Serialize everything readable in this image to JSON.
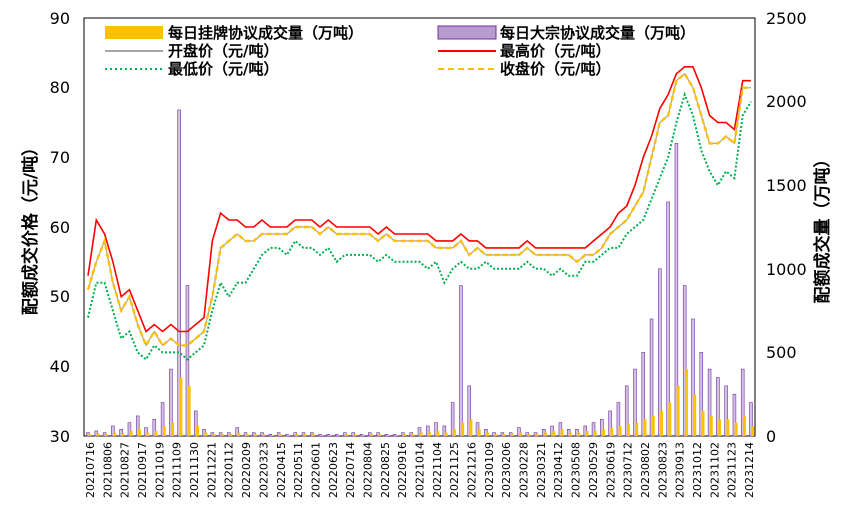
{
  "chart_data": {
    "type": "line",
    "xlabel": "",
    "ylabel": "配额成交价格（元/吨）",
    "y2label": "配额成交量（万吨）",
    "ylim": [
      30,
      90
    ],
    "y2lim": [
      0,
      2500
    ],
    "yticks": [
      "30",
      "40",
      "50",
      "60",
      "70",
      "80",
      "90"
    ],
    "y2ticks": [
      "0",
      "500",
      "1000",
      "1500",
      "2000",
      "2500"
    ],
    "x_ticks": [
      "20210716",
      "20210806",
      "20210827",
      "20210917",
      "20211019",
      "20211109",
      "20211130",
      "20211221",
      "20220112",
      "20220209",
      "20220323",
      "20220415",
      "20220511",
      "20220601",
      "20220623",
      "20220714",
      "20220804",
      "20220825",
      "20220916",
      "20221014",
      "20221104",
      "20221125",
      "20221216",
      "20230109",
      "20230206",
      "20230228",
      "20230321",
      "20230412",
      "20230508",
      "20230529",
      "20230619",
      "20230712",
      "20230802",
      "20230823",
      "20230913",
      "20231012",
      "20231102",
      "20231123",
      "20231214"
    ],
    "legend": [
      {
        "name": "每日挂牌协议成交量（万吨）",
        "color": "#FFC000",
        "style": "bar"
      },
      {
        "name": "每日大宗协议成交量（万吨）",
        "color": "#7030A0",
        "style": "hatched-bar"
      },
      {
        "name": "开盘价（元/吨）",
        "color": "#A6A6A6",
        "style": "solid"
      },
      {
        "name": "最高价（元/吨）",
        "color": "#FF0000",
        "style": "solid"
      },
      {
        "name": "最低价（元/吨）",
        "color": "#00B050",
        "style": "dotted"
      },
      {
        "name": "收盘价（元/吨）",
        "color": "#FFC000",
        "style": "dashed"
      }
    ],
    "close_price": [
      51,
      55,
      58,
      52,
      48,
      50,
      46,
      43,
      45,
      43,
      44,
      43,
      43,
      44,
      45,
      50,
      57,
      58,
      59,
      58,
      58,
      59,
      59,
      59,
      59,
      60,
      60,
      60,
      59,
      60,
      59,
      59,
      59,
      59,
      59,
      58,
      59,
      58,
      58,
      58,
      58,
      58,
      57,
      57,
      57,
      58,
      56,
      57,
      56,
      56,
      56,
      56,
      56,
      57,
      56,
      56,
      56,
      56,
      56,
      55,
      56,
      56,
      57,
      59,
      60,
      61,
      63,
      65,
      70,
      75,
      76,
      81,
      82,
      80,
      76,
      72,
      72,
      73,
      72,
      80,
      80
    ],
    "high_price": [
      53,
      61,
      59,
      55,
      50,
      51,
      48,
      45,
      46,
      45,
      46,
      45,
      45,
      46,
      47,
      58,
      62,
      61,
      61,
      60,
      60,
      61,
      60,
      60,
      60,
      61,
      61,
      61,
      60,
      61,
      60,
      60,
      60,
      60,
      60,
      59,
      60,
      59,
      59,
      59,
      59,
      59,
      58,
      58,
      58,
      59,
      58,
      58,
      57,
      57,
      57,
      57,
      57,
      58,
      57,
      57,
      57,
      57,
      57,
      57,
      57,
      58,
      59,
      60,
      62,
      63,
      66,
      70,
      73,
      77,
      79,
      82,
      83,
      83,
      80,
      76,
      75,
      75,
      74,
      81,
      81
    ],
    "low_price": [
      47,
      52,
      52,
      48,
      44,
      45,
      42,
      41,
      43,
      42,
      42,
      42,
      41,
      42,
      43,
      48,
      52,
      50,
      52,
      52,
      54,
      56,
      57,
      57,
      56,
      58,
      57,
      57,
      56,
      57,
      55,
      56,
      56,
      56,
      56,
      55,
      56,
      55,
      55,
      55,
      55,
      54,
      55,
      52,
      54,
      55,
      54,
      54,
      55,
      54,
      54,
      54,
      54,
      55,
      54,
      54,
      53,
      54,
      53,
      53,
      55,
      55,
      56,
      57,
      57,
      59,
      60,
      61,
      64,
      67,
      70,
      75,
      79,
      76,
      71,
      68,
      66,
      68,
      67,
      76,
      78
    ],
    "volume_listed": [
      10,
      15,
      10,
      20,
      15,
      30,
      40,
      20,
      30,
      60,
      80,
      350,
      300,
      60,
      20,
      10,
      10,
      10,
      20,
      10,
      10,
      10,
      5,
      10,
      5,
      10,
      10,
      10,
      5,
      5,
      5,
      10,
      10,
      5,
      10,
      10,
      5,
      5,
      10,
      10,
      20,
      20,
      30,
      20,
      40,
      80,
      100,
      40,
      20,
      10,
      10,
      10,
      20,
      10,
      10,
      20,
      30,
      40,
      20,
      20,
      30,
      30,
      40,
      50,
      60,
      70,
      80,
      100,
      120,
      150,
      200,
      300,
      400,
      250,
      150,
      120,
      100,
      100,
      80,
      120,
      60
    ],
    "volume_block": [
      20,
      30,
      20,
      60,
      40,
      80,
      120,
      50,
      100,
      200,
      400,
      1950,
      900,
      150,
      40,
      20,
      20,
      20,
      50,
      20,
      20,
      20,
      10,
      20,
      10,
      20,
      20,
      20,
      10,
      10,
      10,
      20,
      20,
      10,
      20,
      20,
      10,
      10,
      20,
      20,
      50,
      60,
      80,
      60,
      200,
      900,
      300,
      80,
      40,
      20,
      20,
      20,
      50,
      20,
      20,
      40,
      60,
      80,
      40,
      40,
      60,
      80,
      100,
      150,
      200,
      300,
      400,
      500,
      700,
      1000,
      1400,
      1750,
      900,
      700,
      500,
      400,
      350,
      300,
      250,
      400,
      200
    ]
  }
}
